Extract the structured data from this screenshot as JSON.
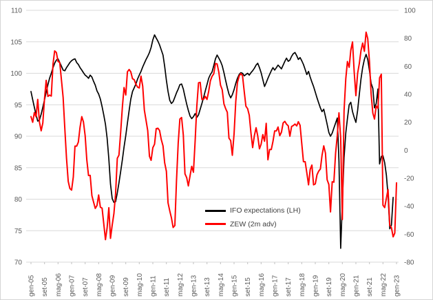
{
  "colors": {
    "background": "#ffffff",
    "frame_border": "#d4d4d4",
    "gridline": "#d9d9d9",
    "axis_tick": "#bfbfbf",
    "tick_label": "#595959",
    "legend_text": "#3f3f3f",
    "series_ifo": "#000000",
    "series_zew": "#ff0000"
  },
  "chart_data": {
    "type": "line",
    "title": "",
    "grid": "horizontal",
    "x_tick_interval_months": 8,
    "x_tick_labels": [
      "gen-05",
      "set-05",
      "mag-06",
      "gen-07",
      "set-07",
      "mag-08",
      "gen-09",
      "set-09",
      "mag-10",
      "gen-11",
      "set-11",
      "mag-12",
      "gen-13",
      "set-13",
      "mag-14",
      "gen-15",
      "set-15",
      "mag-16",
      "gen-17",
      "set-17",
      "mag-18",
      "gen-19",
      "set-19",
      "mag-20",
      "gen-21",
      "set-21",
      "mag-22",
      "gen-23"
    ],
    "left_axis": {
      "min": 70,
      "max": 110,
      "step": 5,
      "ticks": [
        110,
        105,
        100,
        95,
        90,
        85,
        80,
        75,
        70
      ]
    },
    "right_axis": {
      "min": -80,
      "max": 100,
      "step": 20,
      "ticks": [
        100,
        80,
        60,
        40,
        20,
        0,
        -20,
        -40,
        -60,
        -80
      ]
    },
    "legend": {
      "position": "inside-center-right"
    },
    "series": [
      {
        "name": "IFO expectations (LH)",
        "axis": "left",
        "color": "#000000",
        "stroke_width": 1.7,
        "values": [
          97.1,
          95.8,
          94.6,
          93.4,
          92.4,
          92.6,
          93.5,
          94.6,
          95.8,
          97.0,
          98.2,
          99.2,
          100.0,
          100.9,
          101.6,
          102.1,
          102.3,
          101.7,
          101.1,
          100.5,
          100.4,
          100.9,
          101.3,
          101.7,
          102.0,
          102.2,
          102.3,
          101.7,
          101.4,
          100.9,
          100.5,
          100.1,
          99.7,
          99.5,
          99.2,
          99.7,
          99.4,
          98.7,
          98.1,
          97.2,
          96.7,
          95.9,
          94.7,
          93.4,
          91.9,
          89.7,
          86.4,
          82.4,
          80.1,
          79.5,
          79.6,
          81.0,
          82.6,
          84.4,
          86.3,
          88.3,
          90.1,
          92.1,
          94.1,
          95.9,
          97.1,
          97.7,
          98.3,
          99.1,
          99.7,
          100.3,
          101.0,
          101.6,
          102.2,
          102.7,
          103.3,
          104.1,
          105.3,
          106.1,
          105.6,
          105.1,
          104.5,
          103.7,
          102.9,
          101.1,
          98.9,
          97.1,
          95.7,
          95.2,
          95.5,
          96.2,
          96.9,
          97.5,
          98.2,
          98.3,
          97.5,
          96.3,
          95.1,
          94.1,
          93.2,
          92.8,
          93.1,
          93.6,
          93.0,
          93.4,
          94.3,
          95.2,
          96.2,
          97.2,
          98.2,
          99.2,
          99.8,
          100.2,
          101.2,
          102.3,
          102.9,
          102.4,
          101.9,
          101.2,
          100.1,
          98.9,
          97.7,
          96.7,
          96.1,
          96.6,
          97.4,
          98.4,
          99.2,
          99.8,
          100.1,
          100.0,
          99.6,
          99.8,
          100.0,
          99.7,
          100.1,
          100.4,
          100.8,
          101.3,
          101.6,
          100.9,
          100.1,
          99.0,
          97.9,
          98.5,
          99.2,
          99.8,
          100.4,
          100.9,
          100.5,
          100.9,
          101.3,
          101.0,
          100.7,
          101.3,
          101.9,
          102.4,
          101.9,
          102.1,
          102.7,
          103.1,
          103.3,
          102.8,
          102.2,
          102.5,
          102.0,
          101.4,
          100.6,
          99.8,
          100.3,
          99.4,
          98.6,
          97.9,
          97.0,
          96.1,
          95.3,
          94.5,
          93.9,
          94.3,
          93.1,
          91.9,
          90.6,
          90.0,
          90.5,
          91.3,
          92.1,
          92.9,
          86.0,
          72.2,
          79.3,
          86.6,
          90.5,
          92.8,
          95.0,
          95.4,
          93.9,
          93.0,
          92.2,
          94.1,
          96.6,
          99.1,
          100.9,
          102.2,
          103.0,
          102.2,
          100.4,
          98.4,
          97.6,
          94.5,
          95.2,
          97.5,
          85.6,
          86.8,
          86.9,
          85.8,
          83.8,
          80.6,
          75.3,
          75.9,
          80.3,
          null,
          null
        ]
      },
      {
        "name": "ZEW (2m adv)",
        "axis": "right",
        "color": "#ff0000",
        "stroke_width": 2.0,
        "values": [
          24.0,
          20.0,
          26.9,
          23.9,
          36.3,
          20.1,
          13.9,
          19.5,
          37.0,
          50.0,
          38.5,
          39.4,
          38.7,
          61.6,
          71.0,
          69.8,
          63.4,
          62.7,
          50.0,
          37.8,
          15.1,
          -5.6,
          -22.2,
          -27.4,
          -28.5,
          -19.0,
          2.9,
          2.9,
          5.8,
          16.5,
          24.0,
          20.3,
          10.4,
          -6.9,
          -18.1,
          -18.0,
          -32.5,
          -37.2,
          -41.6,
          -39.5,
          -32.0,
          -40.7,
          -41.4,
          -52.4,
          -63.9,
          -55.5,
          -41.1,
          -63.0,
          -53.5,
          -45.2,
          -31.0,
          -5.8,
          -3.5,
          13.0,
          31.1,
          44.8,
          39.5,
          56.1,
          57.7,
          56.0,
          51.1,
          50.4,
          47.2,
          45.1,
          44.5,
          53.0,
          45.8,
          28.7,
          21.2,
          14.0,
          -4.3,
          -7.2,
          1.8,
          4.3,
          15.4,
          15.7,
          14.1,
          7.6,
          3.1,
          -9.0,
          -15.1,
          -37.6,
          -43.3,
          -48.3,
          -55.2,
          -53.8,
          -21.6,
          5.4,
          22.3,
          23.4,
          10.8,
          -16.9,
          -19.6,
          -25.5,
          -18.2,
          -11.5,
          -15.7,
          6.9,
          31.5,
          48.2,
          48.5,
          36.3,
          36.4,
          38.5,
          36.3,
          42.0,
          49.6,
          52.8,
          54.6,
          62.0,
          61.7,
          55.7,
          46.6,
          43.2,
          33.1,
          29.8,
          27.1,
          8.6,
          6.9,
          -3.6,
          11.5,
          34.9,
          48.4,
          53.0,
          54.8,
          53.3,
          41.9,
          31.5,
          29.7,
          25.0,
          12.1,
          1.9,
          10.4,
          16.1,
          10.2,
          1.0,
          4.3,
          11.2,
          6.4,
          19.2,
          -6.8,
          0.5,
          0.5,
          6.2,
          13.8,
          13.8,
          16.6,
          10.4,
          12.8,
          19.5,
          20.6,
          18.6,
          17.5,
          10.0,
          17.0,
          17.6,
          18.7,
          17.4,
          20.4,
          17.8,
          5.1,
          -8.2,
          -8.2,
          -16.1,
          -24.7,
          -13.7,
          -10.6,
          -24.7,
          -24.1,
          -17.5,
          -15.0,
          -13.4,
          -3.6,
          3.1,
          -2.1,
          -21.1,
          -24.5,
          -44.1,
          -22.5,
          -22.8,
          -2.1,
          10.7,
          26.7,
          8.7,
          -49.5,
          28.2,
          51.0,
          63.4,
          59.3,
          71.5,
          77.4,
          56.1,
          39.0,
          55.0,
          61.8,
          71.2,
          76.6,
          70.7,
          84.4,
          79.8,
          63.3,
          40.4,
          26.5,
          22.3,
          31.7,
          29.9,
          51.7,
          54.3,
          -39.3,
          -41.0,
          -34.3,
          -28.0,
          -53.8,
          -55.3,
          -61.9,
          -59.2,
          -23.3
        ]
      }
    ]
  }
}
